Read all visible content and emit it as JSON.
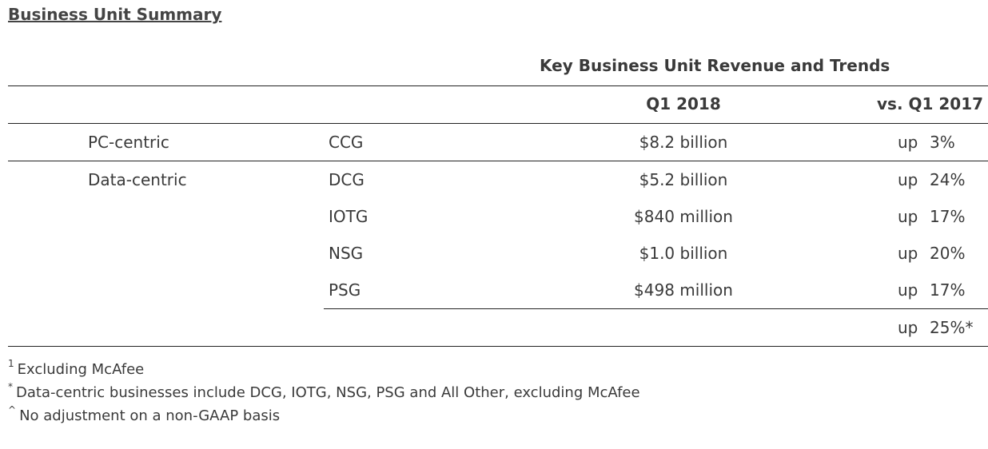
{
  "title": "Business Unit Summary",
  "caption": "Key Business Unit Revenue and Trends",
  "columns": {
    "q1_2018": "Q1 2018",
    "vs_q1_2017": "vs. Q1 2017"
  },
  "rows": [
    {
      "group": "PC-centric",
      "unit": "CCG",
      "revenue": "$8.2 billion",
      "dir": "up",
      "pct": "3%"
    },
    {
      "group": "Data-centric",
      "unit": "DCG",
      "revenue": "$5.2 billion",
      "dir": "up",
      "pct": "24%"
    },
    {
      "group": "",
      "unit": "IOTG",
      "revenue": "$840 million",
      "dir": "up",
      "pct": "17%"
    },
    {
      "group": "",
      "unit": "NSG",
      "revenue": "$1.0 billion",
      "dir": "up",
      "pct": "20%"
    },
    {
      "group": "",
      "unit": "PSG",
      "revenue": "$498 million",
      "dir": "up",
      "pct": "17%"
    }
  ],
  "total": {
    "dir": "up",
    "pct": "25%*"
  },
  "footnotes": [
    {
      "mark": "1",
      "text": "Excluding McAfee"
    },
    {
      "mark": "*",
      "text": "Data-centric businesses include DCG, IOTG, NSG, PSG and All Other, excluding McAfee"
    },
    {
      "mark": "^",
      "text": "No adjustment on a non-GAAP basis"
    }
  ]
}
